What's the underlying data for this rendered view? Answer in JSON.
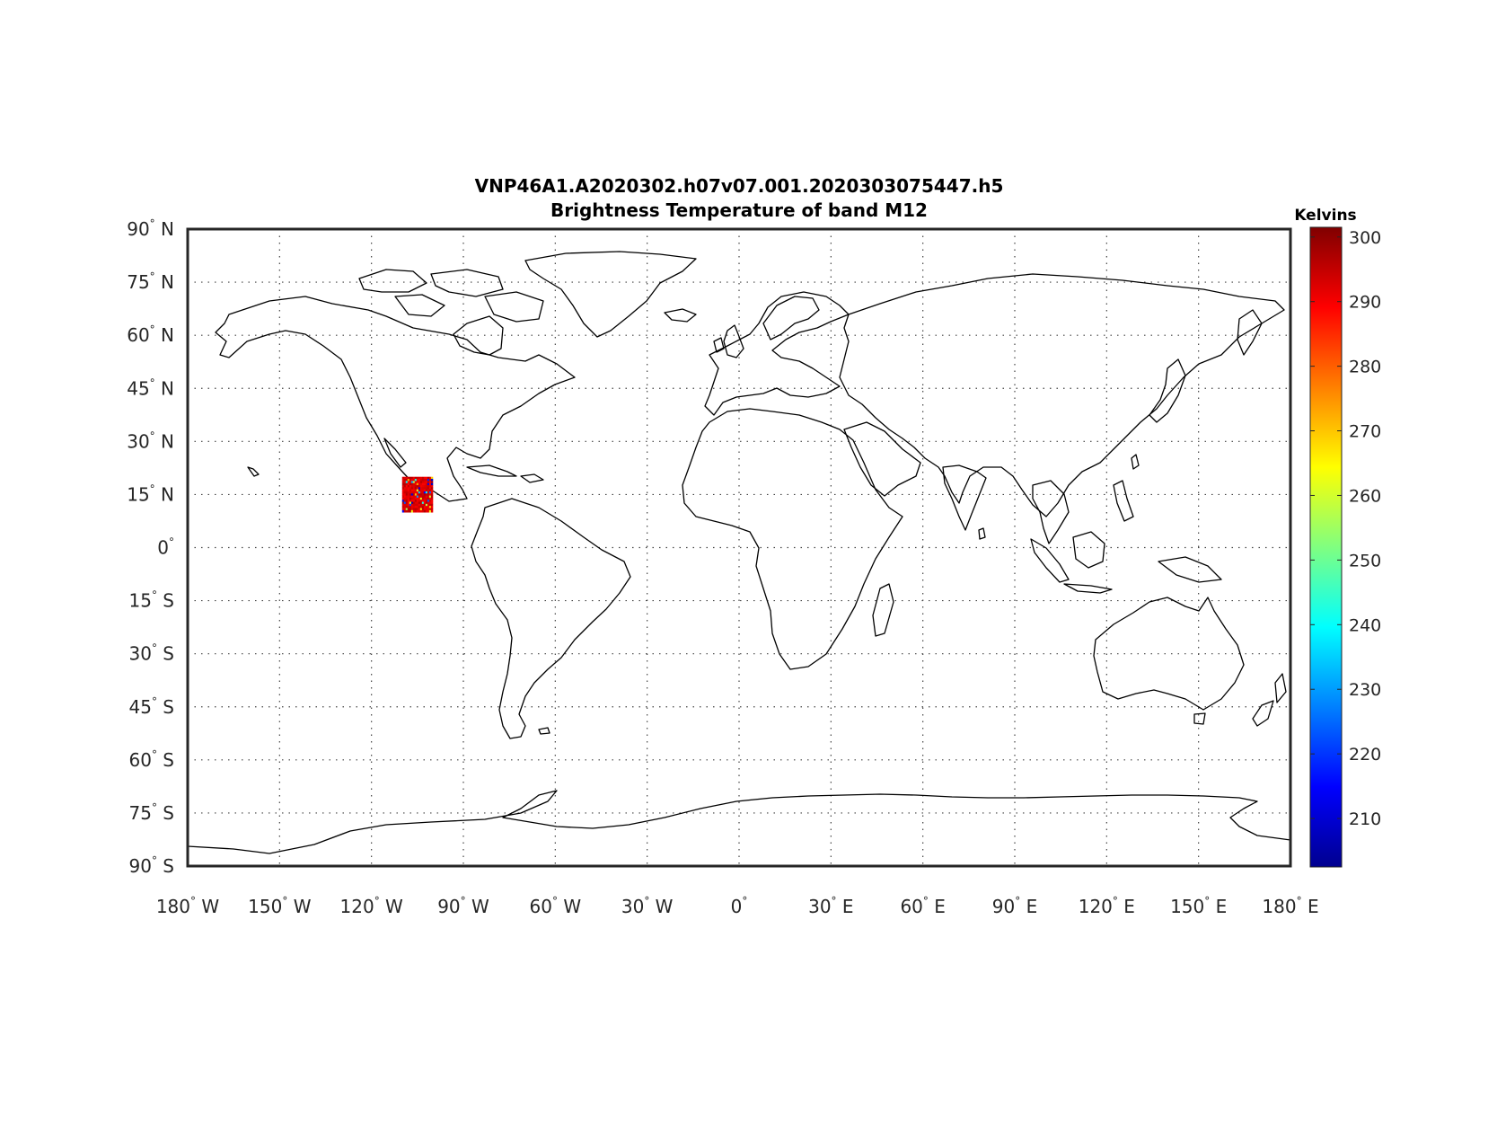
{
  "title": {
    "line1": "VNP46A1.A2020302.h07v07.001.2020303075447.h5",
    "line2": "Brightness Temperature of band M12"
  },
  "map": {
    "projection": "equirectangular",
    "lon_range": [
      -180,
      180
    ],
    "lat_range": [
      -90,
      90
    ],
    "grid": true,
    "lon_ticks": [
      {
        "value": -180,
        "label": "180",
        "hem": "W"
      },
      {
        "value": -150,
        "label": "150",
        "hem": "W"
      },
      {
        "value": -120,
        "label": "120",
        "hem": "W"
      },
      {
        "value": -90,
        "label": "90",
        "hem": "W"
      },
      {
        "value": -60,
        "label": "60",
        "hem": "W"
      },
      {
        "value": -30,
        "label": "30",
        "hem": "W"
      },
      {
        "value": 0,
        "label": "0",
        "hem": ""
      },
      {
        "value": 30,
        "label": "30",
        "hem": "E"
      },
      {
        "value": 60,
        "label": "60",
        "hem": "E"
      },
      {
        "value": 90,
        "label": "90",
        "hem": "E"
      },
      {
        "value": 120,
        "label": "120",
        "hem": "E"
      },
      {
        "value": 150,
        "label": "150",
        "hem": "E"
      },
      {
        "value": 180,
        "label": "180",
        "hem": "E"
      }
    ],
    "lat_ticks": [
      {
        "value": 90,
        "label": "90",
        "hem": "N"
      },
      {
        "value": 75,
        "label": "75",
        "hem": "N"
      },
      {
        "value": 60,
        "label": "60",
        "hem": "N"
      },
      {
        "value": 45,
        "label": "45",
        "hem": "N"
      },
      {
        "value": 30,
        "label": "30",
        "hem": "N"
      },
      {
        "value": 15,
        "label": "15",
        "hem": "N"
      },
      {
        "value": 0,
        "label": "0",
        "hem": ""
      },
      {
        "value": -15,
        "label": "15",
        "hem": "S"
      },
      {
        "value": -30,
        "label": "30",
        "hem": "S"
      },
      {
        "value": -45,
        "label": "45",
        "hem": "S"
      },
      {
        "value": -60,
        "label": "60",
        "hem": "S"
      },
      {
        "value": -75,
        "label": "75",
        "hem": "S"
      },
      {
        "value": -90,
        "label": "90",
        "hem": "S"
      }
    ],
    "degree_symbol": "°",
    "data_tile": {
      "lon_range": [
        -110,
        -100
      ],
      "lat_range": [
        10,
        20
      ],
      "dominant_value_K": 293,
      "sample_range_K": [
        205,
        300
      ]
    }
  },
  "colorbar": {
    "title": "Kelvins",
    "colormap": "jet",
    "range": [
      202.5,
      301.5
    ],
    "ticks": [
      300,
      290,
      280,
      270,
      260,
      250,
      240,
      230,
      220,
      210
    ],
    "colors": [
      "#00008F",
      "#0000FF",
      "#0080FF",
      "#00FFFF",
      "#80FF80",
      "#FFFF00",
      "#FF8000",
      "#FF0000",
      "#800000"
    ]
  }
}
